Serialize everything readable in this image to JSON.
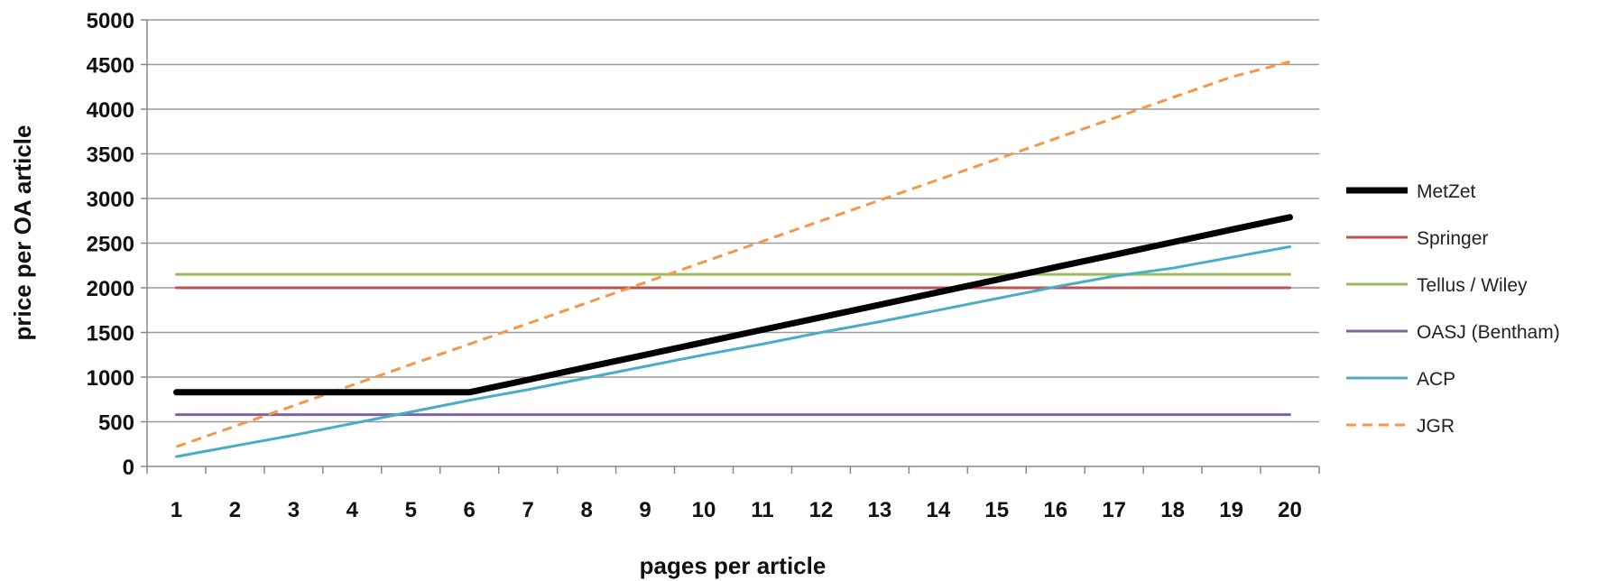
{
  "chart_data": {
    "type": "line",
    "title": "",
    "xlabel": "pages per article",
    "ylabel": "price per OA article",
    "categories": [
      "1",
      "2",
      "3",
      "4",
      "5",
      "6",
      "7",
      "8",
      "9",
      "10",
      "11",
      "12",
      "13",
      "14",
      "15",
      "16",
      "17",
      "18",
      "19",
      "20"
    ],
    "y_ticks": [
      "0",
      "500",
      "1000",
      "1500",
      "2000",
      "2500",
      "3000",
      "3500",
      "4000",
      "4500",
      "5000"
    ],
    "ylim": [
      0,
      5000
    ],
    "grid": true,
    "legend_position": "right",
    "series": [
      {
        "name": "MetZet",
        "color": "#000000",
        "style": "solid-thick",
        "values": [
          830,
          830,
          830,
          830,
          830,
          830,
          970,
          1110,
          1250,
          1390,
          1530,
          1670,
          1810,
          1950,
          2090,
          2230,
          2370,
          2510,
          2650,
          2790
        ]
      },
      {
        "name": "Springer",
        "color": "#c0504d",
        "style": "solid",
        "values": [
          2000,
          2000,
          2000,
          2000,
          2000,
          2000,
          2000,
          2000,
          2000,
          2000,
          2000,
          2000,
          2000,
          2000,
          2000,
          2000,
          2000,
          2000,
          2000,
          2000
        ]
      },
      {
        "name": "Tellus / Wiley",
        "color": "#9bbb59",
        "style": "solid",
        "values": [
          2150,
          2150,
          2150,
          2150,
          2150,
          2150,
          2150,
          2150,
          2150,
          2150,
          2150,
          2150,
          2150,
          2150,
          2150,
          2150,
          2150,
          2150,
          2150,
          2150
        ]
      },
      {
        "name": "OASJ (Bentham)",
        "color": "#8064a2",
        "style": "solid",
        "values": [
          580,
          580,
          580,
          580,
          580,
          580,
          580,
          580,
          580,
          580,
          580,
          580,
          580,
          580,
          580,
          580,
          580,
          580,
          580,
          580
        ]
      },
      {
        "name": "ACP",
        "color": "#4bacc6",
        "style": "solid",
        "values": [
          110,
          230,
          350,
          480,
          610,
          740,
          860,
          990,
          1120,
          1250,
          1370,
          1500,
          1620,
          1750,
          1880,
          2010,
          2130,
          2220,
          2340,
          2460
        ]
      },
      {
        "name": "JGR",
        "color": "#f79646",
        "style": "dashed",
        "values": [
          220,
          450,
          680,
          910,
          1140,
          1370,
          1600,
          1830,
          2060,
          2290,
          2520,
          2750,
          2980,
          3210,
          3440,
          3670,
          3900,
          4130,
          4360,
          4530
        ]
      }
    ]
  }
}
